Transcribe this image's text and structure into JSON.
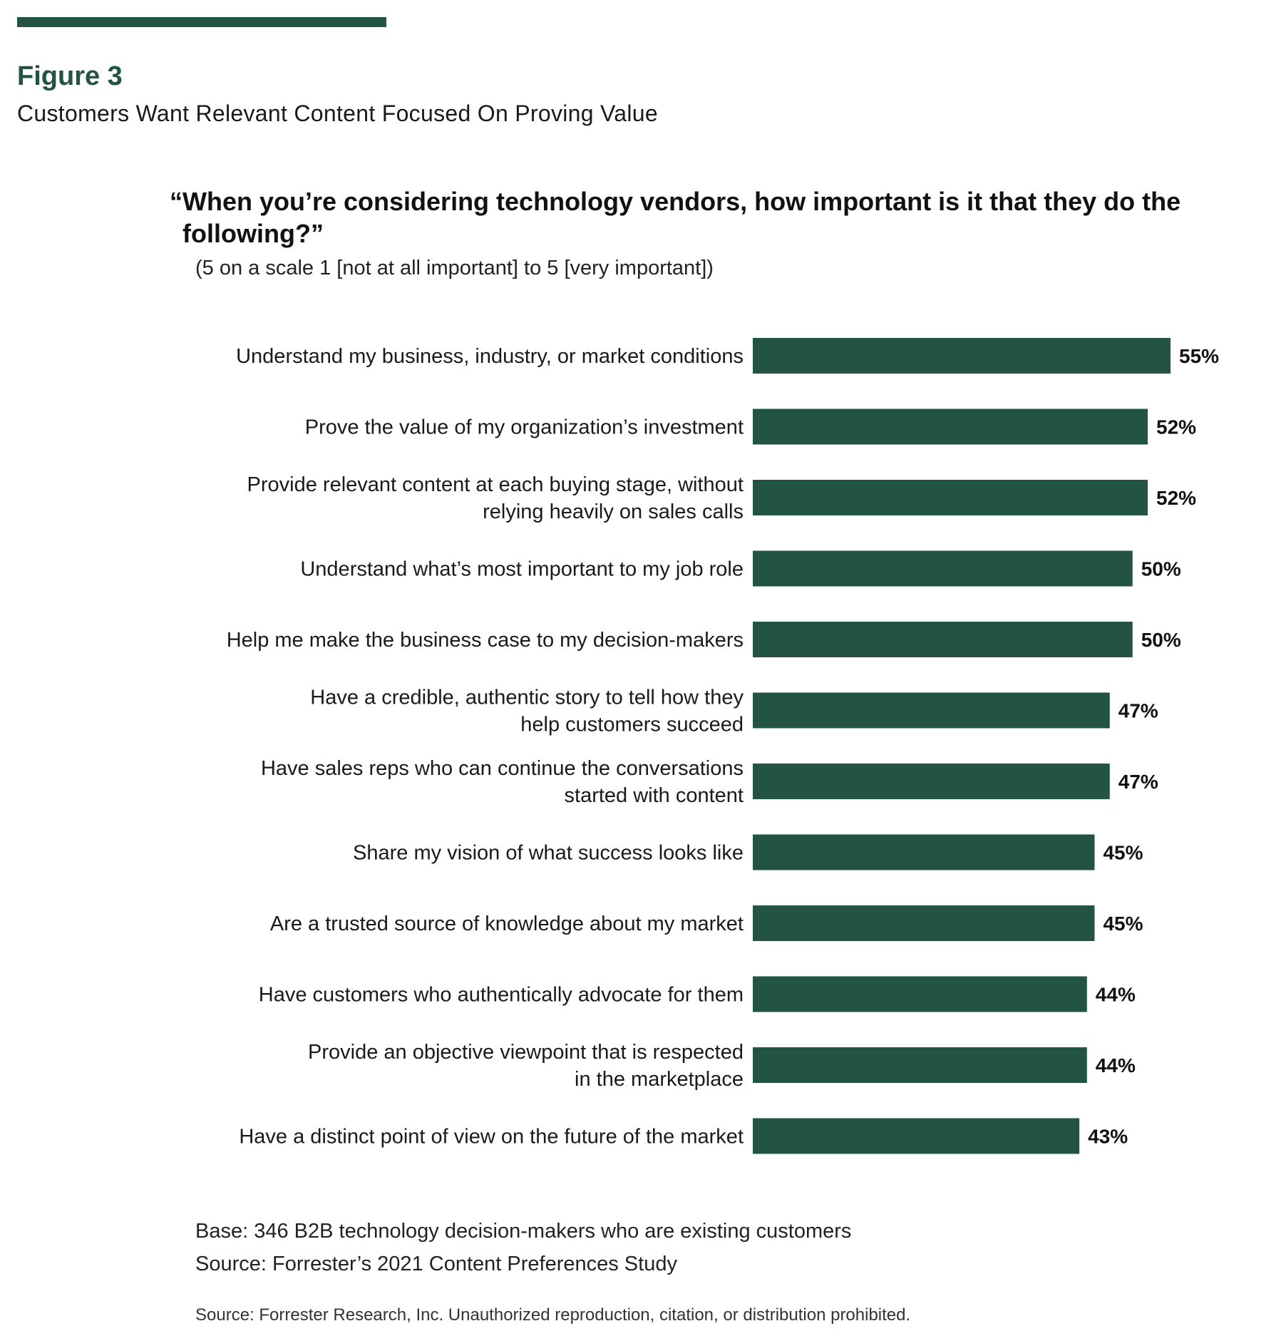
{
  "header": {
    "figure_label": "Figure 3",
    "figure_title": "Customers Want Relevant Content Focused On Proving Value",
    "question": "“When you’re considering technology vendors, how important is it that they do the following?”",
    "scale_note": "(5 on a scale 1 [not at all important] to 5 [very important])"
  },
  "colors": {
    "accent": "#235443",
    "bar": "#235443"
  },
  "chart_data": {
    "type": "bar",
    "orientation": "horizontal",
    "title": "“When you’re considering technology vendors, how important is it that they do the following?”",
    "subtitle": "(5 on a scale 1 [not at all important] to 5 [very important])",
    "xlabel": "",
    "ylabel": "",
    "unit": "%",
    "categories": [
      [
        "Understand my business, industry, or market conditions"
      ],
      [
        "Prove the value of my organization’s investment"
      ],
      [
        "Provide relevant content at each buying stage, without",
        "relying heavily on sales calls"
      ],
      [
        "Understand what’s most important to my job role"
      ],
      [
        "Help me make the business case to my decision-makers"
      ],
      [
        "Have a credible, authentic story to tell how they",
        "help customers succeed"
      ],
      [
        "Have sales reps who can continue the conversations",
        "started with content"
      ],
      [
        "Share my vision of what success looks like"
      ],
      [
        "Are a trusted source of knowledge about my market"
      ],
      [
        "Have customers who authentically advocate for them"
      ],
      [
        "Provide an objective viewpoint that is respected",
        "in the marketplace"
      ],
      [
        "Have a distinct point of view on the future of the market"
      ]
    ],
    "values": [
      55,
      52,
      52,
      50,
      50,
      47,
      47,
      45,
      45,
      44,
      44,
      43
    ],
    "value_labels": [
      "55%",
      "52%",
      "52%",
      "50%",
      "50%",
      "47%",
      "47%",
      "45%",
      "45%",
      "44%",
      "44%",
      "43%"
    ],
    "xlim": [
      0,
      55
    ],
    "grid": false,
    "legend": "none"
  },
  "footer": {
    "base": "Base: 346 B2B technology decision-makers who are existing customers",
    "source": "Source: Forrester’s 2021 Content Preferences Study",
    "copyright": "Source: Forrester Research, Inc. Unauthorized reproduction, citation, or distribution prohibited."
  }
}
